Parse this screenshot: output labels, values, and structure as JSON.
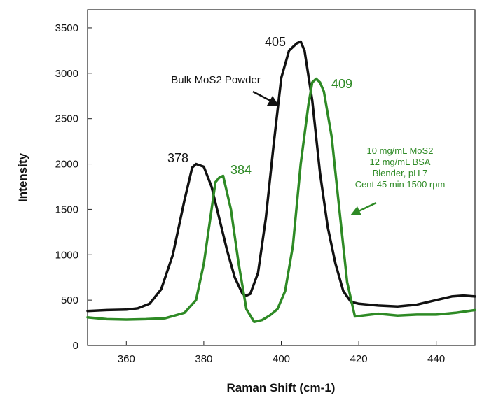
{
  "chart_data": {
    "type": "line",
    "title": "",
    "xlabel": "Raman Shift (cm-1)",
    "ylabel": "Intensity",
    "xlim": [
      350,
      450
    ],
    "ylim": [
      0,
      3700
    ],
    "x_ticks": [
      360,
      380,
      400,
      420,
      440
    ],
    "y_ticks": [
      0,
      500,
      1000,
      1500,
      2000,
      2500,
      3000,
      3500
    ],
    "grid": false,
    "legend": "none",
    "series": [
      {
        "color": "#111111",
        "x": [
          350,
          355,
          360,
          363,
          366,
          369,
          372,
          375,
          377,
          378,
          380,
          382,
          384,
          386,
          388,
          390,
          391,
          392,
          394,
          396,
          398,
          400,
          402,
          404,
          405,
          406,
          408,
          410,
          412,
          414,
          416,
          418,
          420,
          425,
          430,
          435,
          440,
          444,
          447,
          450
        ],
        "y": [
          380,
          390,
          395,
          410,
          460,
          620,
          1000,
          1600,
          1960,
          2000,
          1970,
          1750,
          1400,
          1050,
          750,
          570,
          550,
          570,
          800,
          1400,
          2200,
          2950,
          3250,
          3330,
          3350,
          3250,
          2700,
          1900,
          1300,
          900,
          600,
          480,
          460,
          440,
          430,
          450,
          500,
          540,
          550,
          540
        ]
      },
      {
        "color": "#2e8a25",
        "x": [
          350,
          355,
          360,
          365,
          370,
          375,
          378,
          380,
          382,
          383,
          384,
          385,
          387,
          389,
          391,
          393,
          395,
          397,
          399,
          401,
          403,
          405,
          407,
          408,
          409,
          410,
          411,
          413,
          415,
          417,
          419,
          421,
          425,
          430,
          435,
          440,
          445,
          450
        ],
        "y": [
          310,
          290,
          285,
          290,
          300,
          360,
          500,
          900,
          1500,
          1800,
          1850,
          1870,
          1500,
          900,
          400,
          260,
          280,
          330,
          400,
          600,
          1100,
          2000,
          2650,
          2900,
          2940,
          2900,
          2800,
          2300,
          1500,
          700,
          320,
          330,
          350,
          330,
          340,
          340,
          360,
          390
        ]
      }
    ],
    "annotations": [
      {
        "text": "378",
        "color": "#111111"
      },
      {
        "text": "405",
        "color": "#111111"
      },
      {
        "text": "384",
        "color": "#2e8a25"
      },
      {
        "text": "409",
        "color": "#2e8a25"
      },
      {
        "text": "Bulk MoS2 Powder",
        "color": "#111111"
      },
      {
        "text": "10 mg/mL MoS2",
        "color": "#2e8a25"
      },
      {
        "text": "12 mg/mL BSA",
        "color": "#2e8a25"
      },
      {
        "text": "Blender, pH 7",
        "color": "#2e8a25"
      },
      {
        "text": "Cent 45 min 1500 rpm",
        "color": "#2e8a25"
      }
    ]
  }
}
